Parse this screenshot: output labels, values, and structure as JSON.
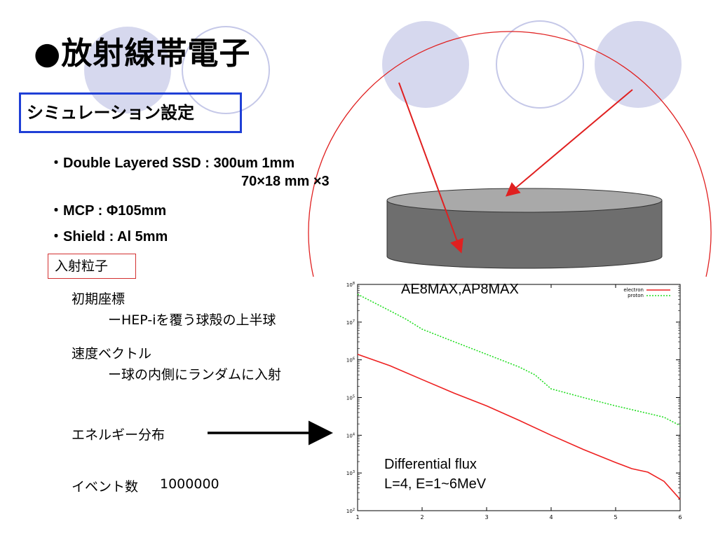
{
  "slide": {
    "title": "●放射線帯電子",
    "section_label": "シミュレーション設定",
    "specs": [
      "・Double Layered SSD : 300um 1mm",
      "70×18 mm ×3",
      "・MCP :  Φ105mm",
      "・Shield : Al 5mm"
    ],
    "particle_box": "入射粒子",
    "initial_coords": {
      "heading": "初期座標",
      "detail": "ーHEP-iを覆う球殻の上半球"
    },
    "velocity": {
      "heading": "速度ベクトル",
      "detail": "ー球の内側にランダムに入射"
    },
    "energy_label": "エネルギー分布",
    "events": {
      "label": "イベント数",
      "value": "1000000"
    },
    "model_label": "AE8MAX,AP8MAX",
    "flux_label_line1": "Differential flux",
    "flux_label_line2": "L=4, E=1~6MeV"
  },
  "colors": {
    "circle_fill": "#d6d8ee",
    "circle_stroke": "#c5c8e8",
    "section_border": "#1f3fd6",
    "arc": "#e02020",
    "arrow_red": "#e02020",
    "cylinder_side": "#6e6e6e",
    "cylinder_top": "#a9a9a9",
    "electron": "#ee2020",
    "proton": "#22dd22"
  },
  "chart_data": {
    "type": "line",
    "title": "",
    "xlabel": "",
    "ylabel": "",
    "log_y": true,
    "xlim": [
      1,
      6
    ],
    "ylim": [
      100,
      100000000
    ],
    "x_ticks": [
      "1",
      "2",
      "3",
      "4",
      "5",
      "6"
    ],
    "y_ticks": [
      "10^2",
      "10^3",
      "10^4",
      "10^5",
      "10^6",
      "10^7",
      "10^8"
    ],
    "legend_position": "top-right",
    "series": [
      {
        "name": "electron",
        "color": "#ee2020",
        "dash": "solid",
        "x": [
          1,
          1.5,
          2,
          2.5,
          3,
          3.5,
          4,
          4.5,
          5,
          5.25,
          5.5,
          5.75,
          6
        ],
        "y": [
          1400000,
          700000,
          300000,
          130000,
          60000,
          25000,
          10000,
          4200,
          1900,
          1300,
          1050,
          600,
          200
        ]
      },
      {
        "name": "proton",
        "color": "#22dd22",
        "dash": "dotted",
        "x": [
          1,
          1.5,
          1.75,
          2,
          2.5,
          3,
          3.5,
          3.75,
          4,
          4.5,
          5,
          5.5,
          5.75,
          6
        ],
        "y": [
          55000000,
          20000000,
          12000000,
          6500000,
          3000000,
          1400000,
          650000,
          400000,
          170000,
          100000,
          60000,
          38000,
          30000,
          18000
        ]
      }
    ]
  }
}
